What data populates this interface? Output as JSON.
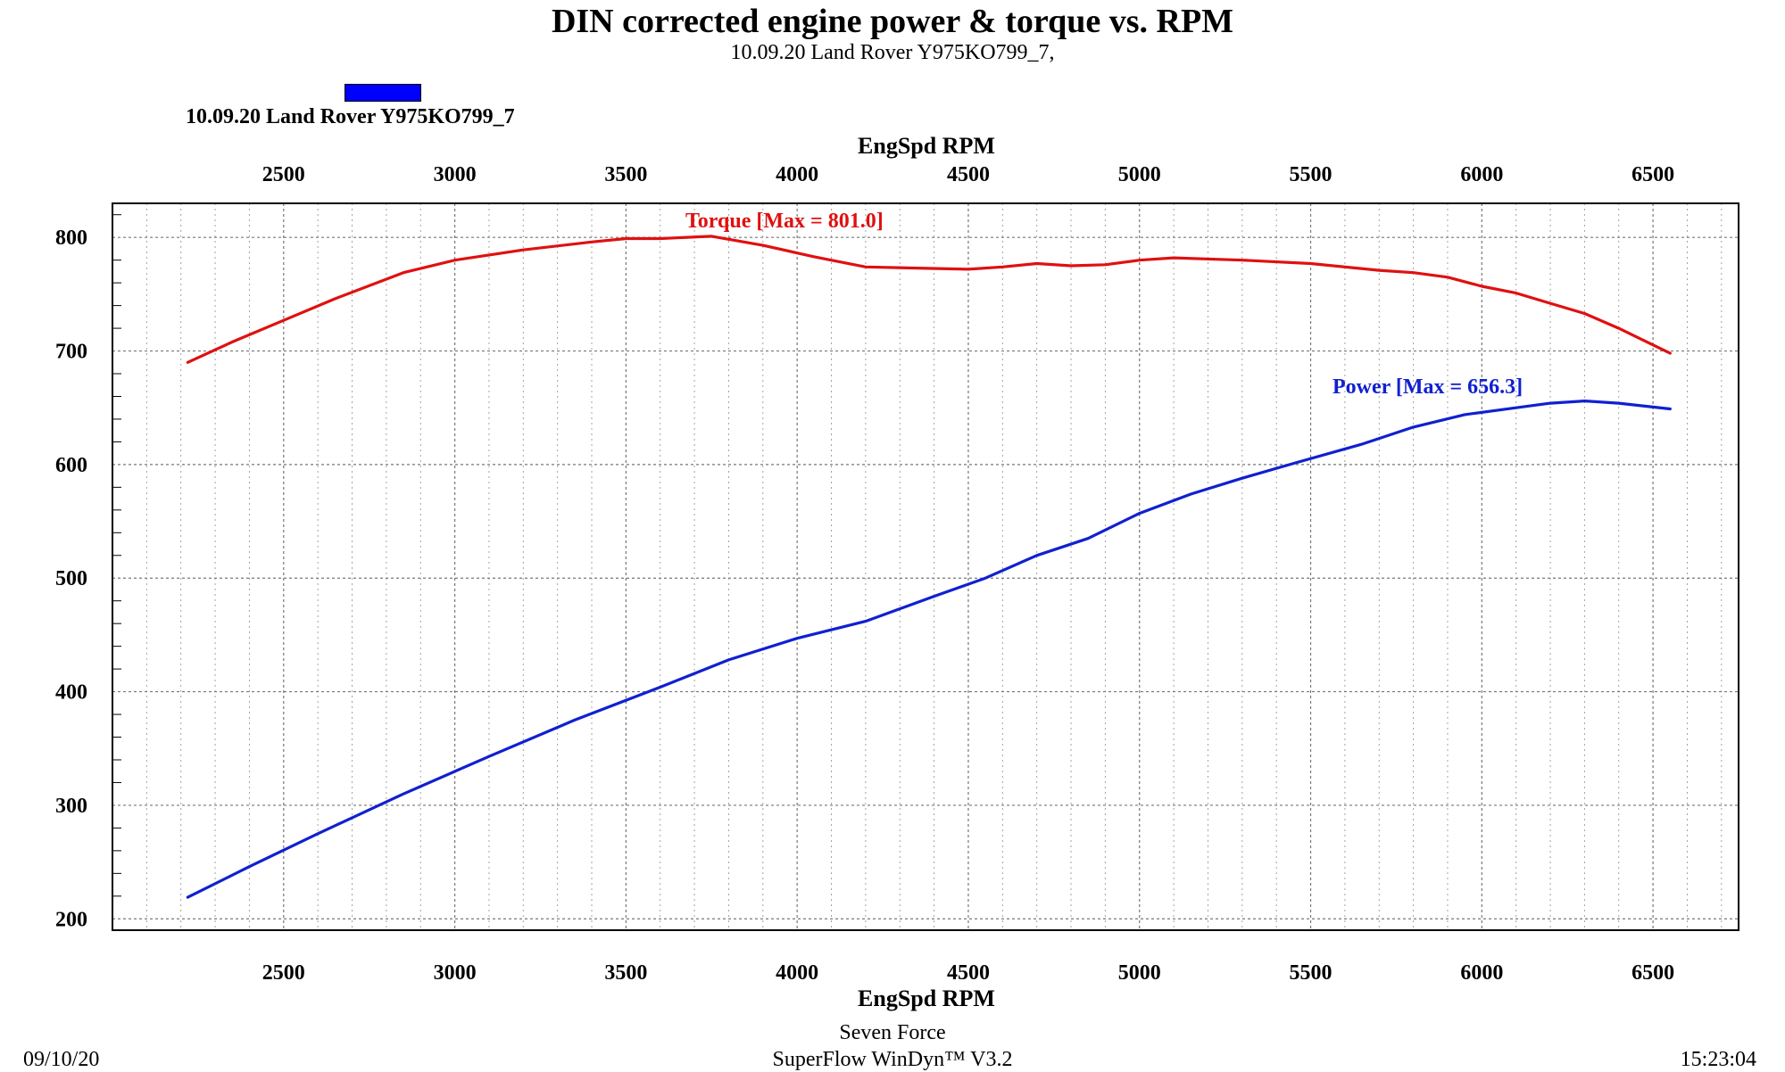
{
  "header": {
    "title": "DIN corrected engine power & torque vs. RPM",
    "subtitle": "10.09.20 Land Rover  Y975KO799_7,"
  },
  "legend": {
    "label": "10.09.20 Land Rover  Y975KO799_7",
    "color": "#0000ff"
  },
  "footer": {
    "date": "09/10/20",
    "time": "15:23:04",
    "line1": "Seven Force",
    "line2": "SuperFlow WinDyn™ V3.2"
  },
  "chart_data": {
    "type": "line",
    "title": "DIN corrected engine power & torque vs. RPM",
    "subtitle": "10.09.20 Land Rover  Y975KO799_7,",
    "xlabel_top": "EngSpd RPM",
    "xlabel_bottom": "EngSpd RPM",
    "ylabel": "",
    "xlim": [
      2000,
      6750
    ],
    "ylim": [
      190,
      830
    ],
    "x_ticks": [
      2500,
      3000,
      3500,
      4000,
      4500,
      5000,
      5500,
      6000,
      6500
    ],
    "y_ticks": [
      200,
      300,
      400,
      500,
      600,
      700,
      800
    ],
    "grid": true,
    "series": [
      {
        "name": "Torque",
        "annotation": "Torque [Max = 801.0]",
        "color": "#e01010",
        "x": [
          2220,
          2350,
          2500,
          2650,
          2850,
          3000,
          3200,
          3400,
          3500,
          3600,
          3750,
          3900,
          4050,
          4200,
          4350,
          4500,
          4600,
          4700,
          4800,
          4900,
          5000,
          5100,
          5300,
          5500,
          5700,
          5800,
          5900,
          6000,
          6100,
          6200,
          6300,
          6400,
          6550
        ],
        "values": [
          690,
          708,
          727,
          746,
          769,
          780,
          789,
          796,
          799,
          799,
          801,
          793,
          783,
          774,
          773,
          772,
          774,
          777,
          775,
          776,
          780,
          782,
          780,
          777,
          771,
          769,
          765,
          757,
          751,
          742,
          733,
          720,
          698
        ]
      },
      {
        "name": "Power",
        "annotation": "Power  [Max = 656.3]",
        "color": "#1020d0",
        "x": [
          2220,
          2400,
          2600,
          2850,
          3100,
          3350,
          3600,
          3800,
          4000,
          4200,
          4400,
          4550,
          4700,
          4850,
          5000,
          5150,
          5300,
          5450,
          5650,
          5800,
          5950,
          6100,
          6200,
          6300,
          6400,
          6550
        ],
        "values": [
          219,
          246,
          275,
          310,
          343,
          375,
          404,
          428,
          447,
          462,
          484,
          500,
          520,
          535,
          557,
          574,
          588,
          601,
          618,
          633,
          644,
          650,
          654,
          656,
          654,
          649
        ]
      }
    ]
  }
}
